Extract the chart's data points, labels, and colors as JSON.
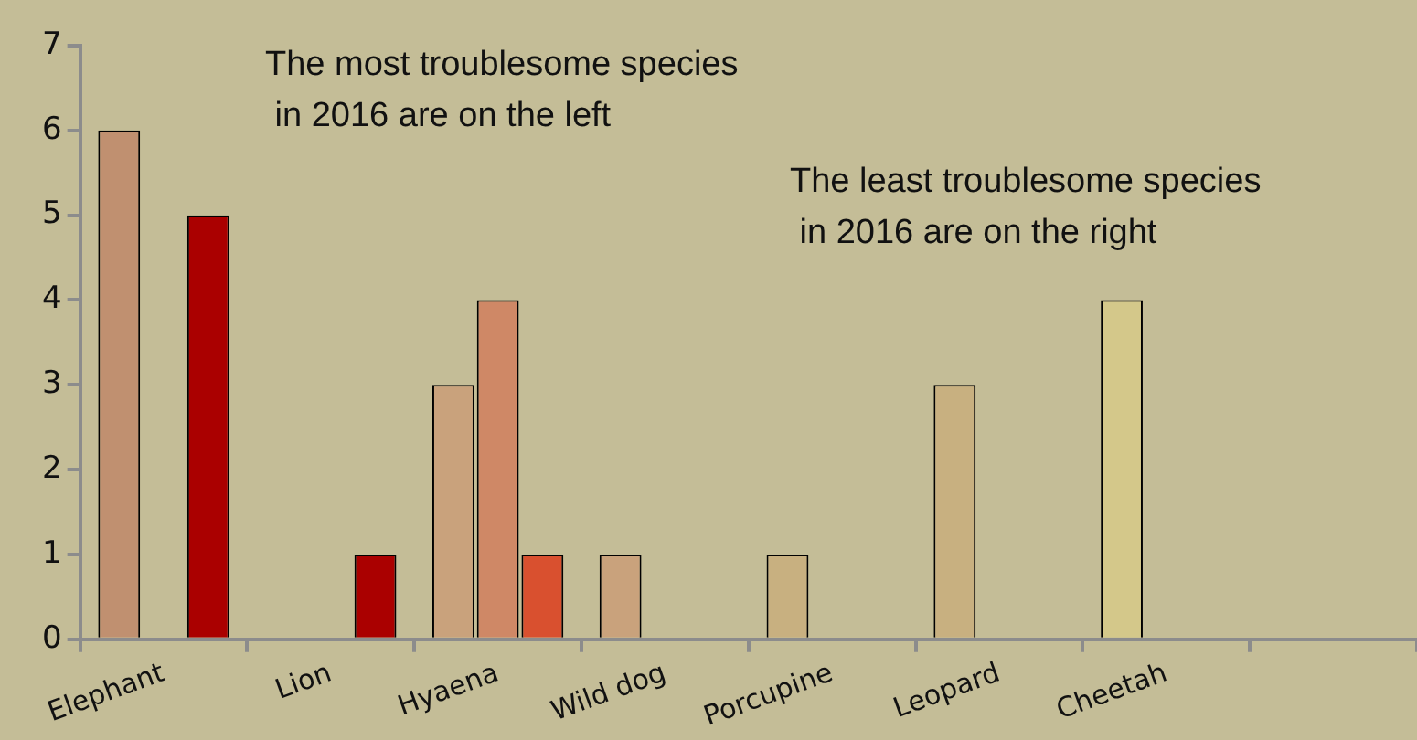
{
  "chart_data": {
    "type": "bar",
    "categories": [
      "Elephant",
      "Lion",
      "Hyaena",
      "Wild dog",
      "Porcupine",
      "Leopard",
      "Cheetah",
      null
    ],
    "series": [
      {
        "colors": [
          "#c09070",
          "#c09070",
          "#c9a27c",
          "#c9a27c",
          "#c8b080",
          "#c8b080",
          "#d4c88a",
          "#d4c88a"
        ],
        "values": [
          6,
          null,
          3,
          1,
          1,
          3,
          4,
          null
        ]
      },
      {
        "colors": [
          "#cf8866",
          "#cf8866",
          "#cf8866",
          "#cf8866",
          "#cf8866",
          "#cf8866",
          "#cf8866",
          "#cf8866"
        ],
        "values": [
          null,
          null,
          4,
          null,
          null,
          null,
          null,
          null
        ]
      },
      {
        "colors": [
          "#aa0000",
          "#aa0000",
          "#d9502f",
          "#d9502f",
          "#d9502f",
          "#d9502f",
          "#d9502f",
          "#d9502f"
        ],
        "values": [
          5,
          1,
          1,
          null,
          null,
          null,
          null,
          null
        ]
      }
    ],
    "ylim": [
      0,
      7
    ],
    "yticks": [
      0,
      1,
      2,
      3,
      4,
      5,
      6,
      7
    ],
    "grid": false,
    "legend": false,
    "annotations": [
      "The most troublesome species\n in 2016 are on the left",
      "The least troublesome species\n in 2016 are on the right"
    ]
  }
}
